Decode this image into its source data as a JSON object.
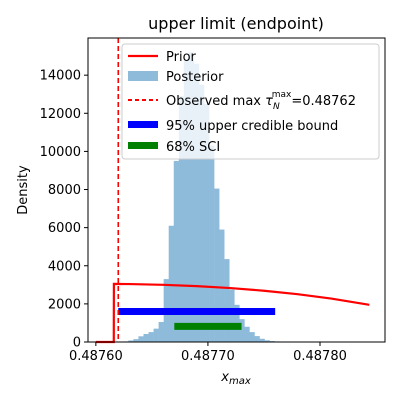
{
  "chart_data": {
    "type": "histogram",
    "title": "upper limit (endpoint)",
    "xlabel": "x",
    "xlabel_sub": "max",
    "ylabel": "Density",
    "xlim": [
      0.487593,
      0.487858
    ],
    "ylim": [
      0,
      15950
    ],
    "x_ticks": [
      0.4876,
      0.4877,
      0.4878
    ],
    "x_tick_labels": [
      "0.48760",
      "0.48770",
      "0.48780"
    ],
    "y_ticks": [
      0,
      2000,
      4000,
      6000,
      8000,
      10000,
      12000,
      14000
    ],
    "y_tick_labels": [
      "0",
      "2000",
      "4000",
      "6000",
      "8000",
      "10000",
      "12000",
      "14000"
    ],
    "grid": false,
    "legend_position": "top-right",
    "legend": [
      {
        "label": "Prior",
        "color": "#ff0000",
        "style": "line"
      },
      {
        "label": "Posterior",
        "color": "#8fbbdb",
        "style": "patch"
      },
      {
        "label_prefix": "Observed max ",
        "label_symbol": "τ",
        "label_sub": "N",
        "label_sup": "max",
        "label_suffix": "=0.48762",
        "color": "#ff0000",
        "style": "dashed"
      },
      {
        "label": "95% upper credible bound",
        "color": "#0000ff",
        "style": "thick"
      },
      {
        "label": "68% SCI",
        "color": "#008000",
        "style": "thick"
      }
    ],
    "prior": {
      "color": "#ff0000",
      "x": [
        0.4876,
        0.487616,
        0.4876161,
        0.48763,
        0.48766,
        0.48769,
        0.48772,
        0.48775,
        0.48778,
        0.48781,
        0.487844
      ],
      "y": [
        0,
        0,
        3050,
        3040,
        3000,
        2930,
        2830,
        2690,
        2510,
        2280,
        1950
      ]
    },
    "posterior": {
      "color": "#8fbbdb",
      "bin_width": 4.5e-06,
      "bins_left": [
        0.48762,
        0.4876245,
        0.487629,
        0.4876335,
        0.487638,
        0.4876425,
        0.487647,
        0.4876515,
        0.487656,
        0.4876605,
        0.487665,
        0.4876695,
        0.487674,
        0.4876785,
        0.487683,
        0.4876875,
        0.487692,
        0.4876965,
        0.487701,
        0.4877055,
        0.48771,
        0.4877145,
        0.487719,
        0.4877235,
        0.487728,
        0.4877325,
        0.487737,
        0.4877415,
        0.487746,
        0.4877505,
        0.487755,
        0.4877595,
        0.487764,
        0.4877685
      ],
      "heights": [
        0,
        30,
        80,
        150,
        300,
        420,
        520,
        700,
        1050,
        3300,
        6100,
        9500,
        12900,
        14800,
        15200,
        14600,
        13500,
        12500,
        10300,
        8050,
        5900,
        4350,
        2750,
        1950,
        1200,
        800,
        520,
        310,
        170,
        90,
        50,
        30,
        10,
        5
      ]
    },
    "observed_max": {
      "value": 0.48762,
      "color": "#ff0000"
    },
    "upper_bound_95": {
      "x_start": 0.48762,
      "x_end": 0.48776,
      "y": 1600,
      "color": "#0000ff"
    },
    "sci_68": {
      "x_start": 0.48767,
      "x_end": 0.48773,
      "y": 820,
      "color": "#008000"
    }
  }
}
